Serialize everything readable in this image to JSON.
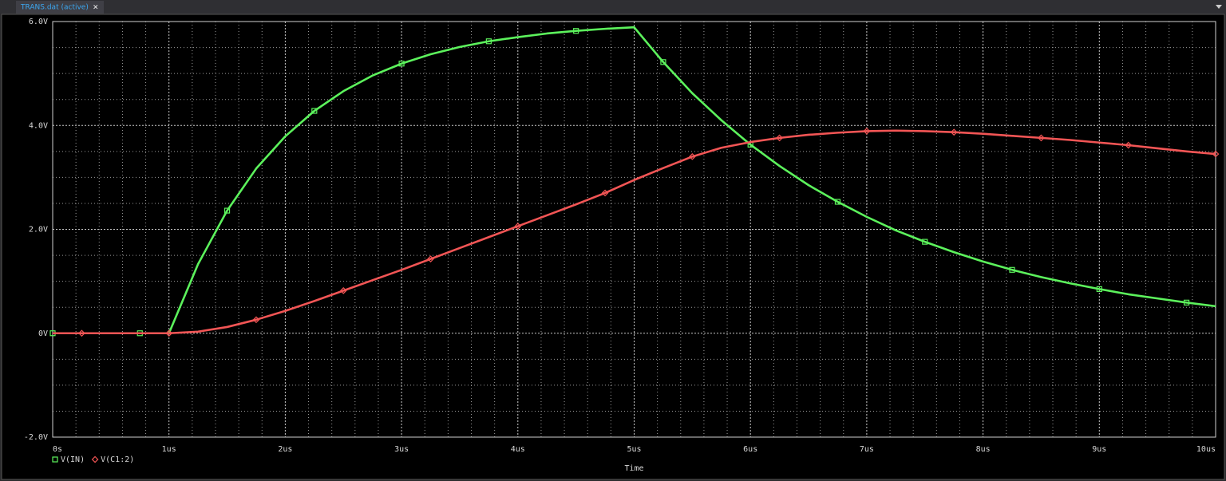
{
  "tab": {
    "label": "TRANS.dat (active)",
    "close": "×"
  },
  "chart_data": {
    "type": "line",
    "xlabel": "Time",
    "xlim": [
      0,
      10
    ],
    "xticks": [
      {
        "value": 0,
        "label": "0s"
      },
      {
        "value": 1,
        "label": "1us"
      },
      {
        "value": 2,
        "label": "2us"
      },
      {
        "value": 3,
        "label": "3us"
      },
      {
        "value": 4,
        "label": "4us"
      },
      {
        "value": 5,
        "label": "5us"
      },
      {
        "value": 6,
        "label": "6us"
      },
      {
        "value": 7,
        "label": "7us"
      },
      {
        "value": 8,
        "label": "8us"
      },
      {
        "value": 9,
        "label": "9us"
      },
      {
        "value": 10,
        "label": "10us"
      }
    ],
    "ylim": [
      -2,
      6
    ],
    "yticks": [
      {
        "value": -2,
        "label": "-2.0V"
      },
      {
        "value": 0,
        "label": "0V"
      },
      {
        "value": 2,
        "label": "2.0V"
      },
      {
        "value": 4,
        "label": "4.0V"
      },
      {
        "value": 6,
        "label": "6.0V"
      }
    ],
    "grid": true,
    "x": [
      0,
      0.25,
      0.5,
      0.75,
      1,
      1.25,
      1.5,
      1.75,
      2,
      2.25,
      2.5,
      2.75,
      3,
      3.25,
      3.5,
      3.75,
      4,
      4.25,
      4.5,
      4.75,
      5,
      5.25,
      5.5,
      5.75,
      6,
      6.25,
      6.5,
      6.75,
      7,
      7.25,
      7.5,
      7.75,
      8,
      8.25,
      8.5,
      8.75,
      9,
      9.25,
      9.5,
      9.75,
      10
    ],
    "series": [
      {
        "name": "V(IN)",
        "color": "#5cf25c",
        "marker": "square",
        "values": [
          0,
          0,
          0,
          0,
          0,
          1.33,
          2.36,
          3.17,
          3.79,
          4.28,
          4.66,
          4.96,
          5.19,
          5.37,
          5.51,
          5.62,
          5.7,
          5.77,
          5.82,
          5.86,
          5.89,
          5.22,
          4.62,
          4.1,
          3.63,
          3.22,
          2.85,
          2.53,
          2.24,
          1.98,
          1.76,
          1.56,
          1.38,
          1.22,
          1.08,
          0.96,
          0.85,
          0.75,
          0.67,
          0.59,
          0.52
        ]
      },
      {
        "name": "V(C1:2)",
        "color": "#f25555",
        "marker": "diamond",
        "values": [
          0,
          0,
          0,
          0,
          0,
          0.03,
          0.12,
          0.26,
          0.43,
          0.62,
          0.82,
          1.02,
          1.22,
          1.43,
          1.64,
          1.85,
          2.06,
          2.27,
          2.48,
          2.7,
          2.95,
          3.18,
          3.4,
          3.57,
          3.68,
          3.76,
          3.82,
          3.86,
          3.89,
          3.9,
          3.89,
          3.87,
          3.84,
          3.8,
          3.76,
          3.72,
          3.67,
          3.62,
          3.56,
          3.5,
          3.45
        ]
      }
    ]
  }
}
